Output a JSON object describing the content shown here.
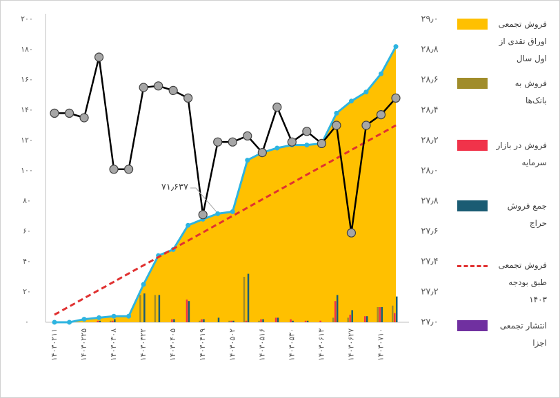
{
  "chart_data": {
    "type": "combo",
    "categories": [
      "۱۴۰۳۰۲۱۱",
      null,
      "۱۴۰۳۰۲۲۵",
      null,
      "۱۴۰۳۰۳۰۸",
      null,
      "۱۴۰۳۰۳۲۲",
      null,
      "۱۴۰۳۰۴۰۵",
      null,
      "۱۴۰۳۰۴۱۹",
      null,
      "۱۴۰۳۰۵۰۲",
      null,
      "۱۴۰۳۰۵۱۶",
      null,
      "۱۴۰۳۰۵۳۰",
      null,
      "۱۴۰۳۰۶۱۳",
      null,
      "۱۴۰۳۰۶۲۷",
      null,
      "۱۴۰۳۰۷۱۰",
      null
    ],
    "ylim": [
      0,
      200
    ],
    "yticks": [
      {
        "value": 0,
        "label": "۰"
      },
      {
        "value": 20,
        "label": "۲۰"
      },
      {
        "value": 40,
        "label": "۴۰"
      },
      {
        "value": 60,
        "label": "۶۰"
      },
      {
        "value": 80,
        "label": "۸۰"
      },
      {
        "value": 100,
        "label": "۱۰۰"
      },
      {
        "value": 120,
        "label": "۱۲۰"
      },
      {
        "value": 140,
        "label": "۱۴۰"
      },
      {
        "value": 160,
        "label": "۱۶۰"
      },
      {
        "value": 180,
        "label": "۱۸۰"
      },
      {
        "value": 200,
        "label": "۲۰۰"
      }
    ],
    "y2lim": [
      27.0,
      29.0
    ],
    "y2ticks": [
      {
        "value": 27.0,
        "label": "۲۷٫۰"
      },
      {
        "value": 27.2,
        "label": "۲۷٫۲"
      },
      {
        "value": 27.4,
        "label": "۲۷٫۴"
      },
      {
        "value": 27.6,
        "label": "۲۷٫۶"
      },
      {
        "value": 27.8,
        "label": "۲۷٫۸"
      },
      {
        "value": 28.0,
        "label": "۲۸٫۰"
      },
      {
        "value": 28.2,
        "label": "۲۸٫۲"
      },
      {
        "value": 28.4,
        "label": "۲۸٫۴"
      },
      {
        "value": 28.6,
        "label": "۲۸٫۶"
      },
      {
        "value": 28.8,
        "label": "۲۸٫۸"
      },
      {
        "value": 29.0,
        "label": "۲۹٫۰"
      }
    ],
    "annotation": "۷۱٫۶۳۷",
    "series": [
      {
        "name": "فروش تجمعی اوراق نقدی از اول سال",
        "type": "area",
        "color": "#ffc000",
        "line_color": "#2eb4e0",
        "values": [
          0,
          0,
          2,
          3,
          4,
          4,
          25,
          44,
          48,
          64,
          68,
          71.637,
          73,
          107,
          112,
          115,
          117,
          117,
          118,
          138,
          146,
          152,
          164,
          182
        ]
      },
      {
        "name": "فروش به بانک‌ها",
        "type": "bar",
        "color": "#a08c2a",
        "values": [
          0,
          0,
          0,
          0,
          1,
          0,
          18,
          18,
          0,
          0,
          1,
          0,
          1,
          30,
          1,
          0,
          0,
          0,
          0,
          3,
          3,
          0,
          10,
          11
        ]
      },
      {
        "name": "فروش در بازار سرمایه",
        "type": "bar",
        "color": "#f0334a",
        "values": [
          0,
          0,
          0,
          1,
          1,
          0,
          0,
          0,
          2,
          15,
          2,
          0,
          1,
          1,
          2,
          3,
          2,
          1,
          1,
          14,
          5,
          4,
          10,
          6
        ]
      },
      {
        "name": "جمع فروش حراج",
        "type": "bar",
        "color": "#1b5c73",
        "values": [
          0,
          0,
          0,
          1,
          2,
          0,
          19,
          18,
          2,
          14,
          2,
          3,
          1,
          32,
          2,
          3,
          1,
          1,
          0,
          18,
          8,
          4,
          10,
          17
        ]
      },
      {
        "name": "فروش تجمعی طبق بودجه ۱۴۰۳",
        "type": "dashed",
        "color": "#e03131",
        "values": [
          5,
          10.4,
          15.9,
          21.3,
          26.7,
          32.2,
          37.6,
          43.0,
          48.5,
          53.9,
          59.3,
          64.8,
          70.2,
          75.6,
          81.1,
          86.5,
          91.9,
          97.4,
          102.8,
          108.2,
          113.7,
          119.1,
          124.5,
          130
        ]
      },
      {
        "name": "انتشار تجمعی اجزا",
        "type": "bar",
        "color": "#7030a0",
        "values": [
          0,
          0,
          0,
          0,
          0,
          0,
          0,
          0,
          0,
          0,
          0,
          0,
          0,
          0,
          0,
          0,
          0,
          0,
          0,
          0,
          0,
          0,
          0,
          0
        ]
      },
      {
        "type": "line",
        "axis": "y2",
        "color": "#000000",
        "marker_color": "#a6a6a6",
        "values": [
          28.38,
          28.38,
          28.35,
          28.75,
          28.01,
          28.01,
          28.55,
          28.56,
          28.53,
          28.48,
          27.71,
          28.19,
          28.19,
          28.23,
          28.12,
          28.42,
          28.19,
          28.26,
          28.18,
          28.3,
          27.59,
          28.3,
          28.37,
          28.48
        ]
      }
    ]
  }
}
